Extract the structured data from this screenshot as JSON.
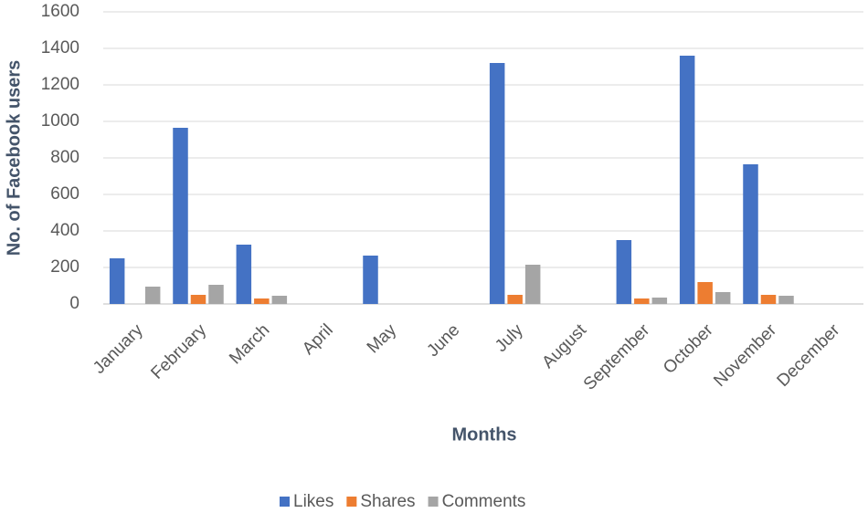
{
  "chart_data": {
    "type": "bar",
    "x_label": "Months",
    "y_label": "No. of Facebook users",
    "categories": [
      "January",
      "February",
      "March",
      "April",
      "May",
      "June",
      "July",
      "August",
      "September",
      "October",
      "November",
      "December"
    ],
    "series": [
      {
        "name": "Likes",
        "color": "#4472c4",
        "values": [
          250,
          965,
          325,
          0,
          265,
          0,
          1320,
          0,
          350,
          1360,
          765,
          0
        ]
      },
      {
        "name": "Shares",
        "color": "#ed7d31",
        "values": [
          0,
          50,
          30,
          0,
          0,
          0,
          50,
          0,
          30,
          120,
          50,
          0
        ]
      },
      {
        "name": "Comments",
        "color": "#a5a5a5",
        "values": [
          95,
          105,
          45,
          0,
          0,
          0,
          215,
          0,
          35,
          65,
          45,
          0
        ]
      }
    ],
    "ylim": [
      0,
      1600
    ],
    "yticks": [
      0,
      200,
      400,
      600,
      800,
      1000,
      1200,
      1400,
      1600
    ],
    "grid": true,
    "legend": "bottom"
  }
}
